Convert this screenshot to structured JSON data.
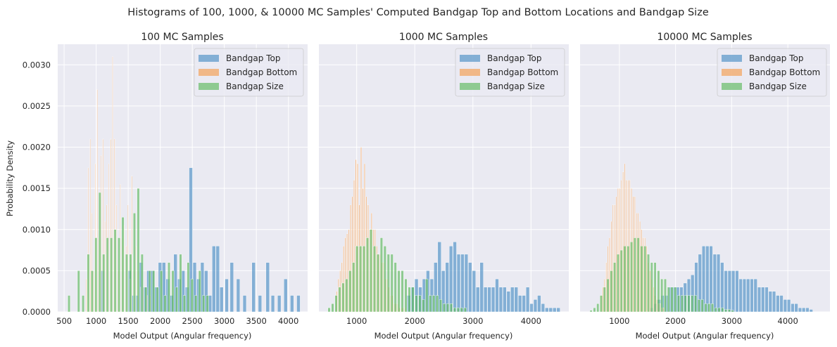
{
  "suptitle": "Histograms of 100, 1000, & 10000 MC Samples' Computed Bandgap Top and Bottom Locations and Bandgap Size",
  "colors": {
    "top": "#4c8fc4",
    "bottom": "#f59d4f",
    "size": "#5cb85c",
    "panel_bg": "#eaeaf2",
    "grid": "#ffffff"
  },
  "chart_data": [
    {
      "type": "bar",
      "title": "100 MC Samples",
      "xlabel": "Model Output (Angular frequency)",
      "ylabel": "Probability Density",
      "xlim": [
        400,
        4300
      ],
      "ylim": [
        0,
        0.00325
      ],
      "xticks": [
        500,
        1000,
        1500,
        2000,
        2500,
        3000,
        3500,
        4000
      ],
      "yticks": [
        0.0,
        0.0005,
        0.001,
        0.0015,
        0.002,
        0.0025,
        0.003
      ],
      "ytick_labels": [
        "0.0000",
        "0.0005",
        "0.0010",
        "0.0015",
        "0.0020",
        "0.0025",
        "0.0030"
      ],
      "legend": [
        "Bandgap Top",
        "Bandgap Bottom",
        "Bandgap Size"
      ],
      "legend_loc": "upper right",
      "series": [
        {
          "name": "Bandgap Top",
          "bin_width": 60,
          "x": [
            1100,
            1520,
            1580,
            1640,
            1700,
            1760,
            1820,
            1880,
            1940,
            2000,
            2060,
            2120,
            2180,
            2240,
            2300,
            2360,
            2420,
            2480,
            2540,
            2600,
            2660,
            2720,
            2780,
            2840,
            2900,
            2960,
            3040,
            3120,
            3220,
            3320,
            3460,
            3560,
            3680,
            3760,
            3860,
            3960,
            4060,
            4160
          ],
          "values": [
            0.0005,
            0.0005,
            0.0002,
            0.0002,
            0.0006,
            0.0003,
            0.0005,
            0.0005,
            0.0003,
            0.0006,
            0.0006,
            0.0004,
            0.0002,
            0.0007,
            0.0004,
            0.0005,
            0.0003,
            0.00175,
            0.0006,
            0.0004,
            0.0006,
            0.0005,
            0.0002,
            0.0008,
            0.0008,
            0.0003,
            0.0004,
            0.0006,
            0.0004,
            0.0002,
            0.0006,
            0.0002,
            0.0006,
            0.0002,
            0.0002,
            0.0004,
            0.0002,
            0.0002
          ]
        },
        {
          "name": "Bandgap Bottom",
          "bin_width": 16,
          "x": [
            850,
            880,
            910,
            935,
            960,
            990,
            1020,
            1050,
            1080,
            1110,
            1140,
            1170,
            1200,
            1230,
            1260,
            1290,
            1320,
            1350,
            1380,
            1410,
            1440,
            1470,
            1500,
            1530,
            1560,
            1590,
            1620,
            1660,
            1700,
            1740,
            1800,
            1850
          ],
          "values": [
            0.0004,
            0.00175,
            0.0021,
            0.0012,
            0.0005,
            0.0018,
            0.0027,
            0.0009,
            0.0019,
            0.0021,
            0.0011,
            0.0013,
            0.0018,
            0.0021,
            0.0031,
            0.0021,
            0.0013,
            0.0005,
            0.00155,
            0.0009,
            0.00105,
            0.0008,
            0.0013,
            0.0004,
            0.00165,
            0.0005,
            0.0008,
            0.0005,
            0.0003,
            0.0003,
            0.0002,
            0.0002
          ]
        },
        {
          "name": "Bandgap Size",
          "bin_width": 44,
          "x": [
            580,
            730,
            800,
            880,
            940,
            1000,
            1060,
            1120,
            1180,
            1240,
            1300,
            1360,
            1420,
            1480,
            1540,
            1600,
            1660,
            1720,
            1780,
            1840,
            1900,
            1960,
            2020,
            2080,
            2140,
            2200,
            2260,
            2320,
            2380,
            2440,
            2500,
            2560,
            2620,
            2680,
            2740
          ],
          "values": [
            0.0002,
            0.0005,
            0.0002,
            0.0007,
            0.0005,
            0.0009,
            0.00145,
            0.0007,
            0.0009,
            0.0009,
            0.001,
            0.0009,
            0.00115,
            0.0007,
            0.0007,
            0.0012,
            0.0015,
            0.0007,
            0.0003,
            0.0005,
            0.0005,
            0.0003,
            0.0005,
            0.0002,
            0.0006,
            0.0005,
            0.0003,
            0.0007,
            0.0002,
            0.0006,
            0.0004,
            0.0002,
            0.0005,
            0.0002,
            0.0002
          ]
        }
      ]
    },
    {
      "type": "bar",
      "title": "1000 MC Samples",
      "xlabel": "Model Output (Angular frequency)",
      "xlim": [
        350,
        4650
      ],
      "ylim": [
        0,
        0.00325
      ],
      "xticks": [
        1000,
        2000,
        3000,
        4000
      ],
      "legend": [
        "Bandgap Top",
        "Bandgap Bottom",
        "Bandgap Size"
      ],
      "legend_loc": "upper right",
      "series": [
        {
          "name": "Bandgap Top",
          "bin_width": 66,
          "x": [
            1900,
            1966,
            2032,
            2098,
            2164,
            2230,
            2296,
            2362,
            2428,
            2494,
            2560,
            2626,
            2692,
            2758,
            2824,
            2890,
            2956,
            3022,
            3088,
            3154,
            3220,
            3286,
            3352,
            3418,
            3484,
            3550,
            3616,
            3682,
            3748,
            3814,
            3880,
            3946,
            4012,
            4078,
            4144,
            4210,
            4276,
            4342,
            4408,
            4474
          ],
          "values": [
            0.0002,
            0.0003,
            0.0004,
            0.0003,
            0.0004,
            0.0005,
            0.0004,
            0.0006,
            0.00085,
            0.0005,
            0.0006,
            0.0008,
            0.00085,
            0.0007,
            0.0007,
            0.0007,
            0.0006,
            0.0005,
            0.0003,
            0.0006,
            0.0003,
            0.0003,
            0.0003,
            0.0004,
            0.0003,
            0.0003,
            0.00025,
            0.0003,
            0.0003,
            0.0002,
            0.0002,
            0.0003,
            0.0001,
            0.00015,
            0.0002,
            0.0001,
            5e-05,
            5e-05,
            5e-05,
            5e-05
          ]
        },
        {
          "name": "Bandgap Bottom",
          "bin_width": 24,
          "x": [
            660,
            690,
            720,
            750,
            780,
            810,
            840,
            870,
            900,
            930,
            960,
            990,
            1020,
            1050,
            1080,
            1110,
            1140,
            1170,
            1200,
            1230,
            1260,
            1290,
            1320,
            1350,
            1380,
            1410,
            1440,
            1470,
            1500,
            1530,
            1560,
            1590,
            1620,
            1650,
            1680,
            1710,
            1740,
            1770,
            1800,
            1830
          ],
          "values": [
            0.00025,
            0.0004,
            0.0005,
            0.0006,
            0.0008,
            0.0009,
            0.00095,
            0.001,
            0.0013,
            0.0014,
            0.0016,
            0.00185,
            0.0018,
            0.0013,
            0.002,
            0.0015,
            0.0018,
            0.0014,
            0.0013,
            0.001,
            0.0012,
            0.001,
            0.001,
            0.0008,
            0.0007,
            0.0007,
            0.0006,
            0.0006,
            0.0004,
            0.0004,
            0.0003,
            0.0002,
            0.0002,
            0.0001,
            0.0001,
            0.0001,
            5e-05,
            5e-05,
            5e-05,
            5e-05
          ]
        },
        {
          "name": "Bandgap Size",
          "bin_width": 50,
          "x": [
            530,
            590,
            650,
            710,
            770,
            830,
            890,
            950,
            1010,
            1070,
            1130,
            1190,
            1250,
            1310,
            1370,
            1430,
            1490,
            1550,
            1610,
            1670,
            1730,
            1790,
            1850,
            1910,
            1970,
            2030,
            2090,
            2150,
            2210,
            2270,
            2330,
            2390,
            2450,
            2510,
            2570,
            2630,
            2690,
            2750,
            2810,
            2870
          ],
          "values": [
            5e-05,
            0.0001,
            0.0002,
            0.0003,
            0.00035,
            0.0004,
            0.0005,
            0.0006,
            0.0008,
            0.0008,
            0.0008,
            0.0009,
            0.001,
            0.0008,
            0.0007,
            0.0009,
            0.0008,
            0.0007,
            0.0007,
            0.0006,
            0.0005,
            0.0005,
            0.0004,
            0.0003,
            0.0003,
            0.0002,
            0.0002,
            0.00015,
            0.0004,
            0.0002,
            0.0002,
            0.0002,
            0.00015,
            0.0001,
            0.0001,
            0.0001,
            5e-05,
            5e-05,
            5e-05,
            5e-05
          ]
        }
      ]
    },
    {
      "type": "bar",
      "title": "10000 MC Samples",
      "xlabel": "Model Output (Angular frequency)",
      "xlim": [
        300,
        4750
      ],
      "ylim": [
        0,
        0.00325
      ],
      "xticks": [
        1000,
        2000,
        3000,
        4000
      ],
      "legend": [
        "Bandgap Top",
        "Bandgap Bottom",
        "Bandgap Size"
      ],
      "legend_loc": "upper right",
      "series": [
        {
          "name": "Bandgap Top",
          "bin_width": 66,
          "x": [
            1580,
            1646,
            1712,
            1778,
            1844,
            1910,
            1976,
            2042,
            2108,
            2174,
            2240,
            2306,
            2372,
            2438,
            2504,
            2570,
            2636,
            2702,
            2768,
            2834,
            2900,
            2966,
            3032,
            3098,
            3164,
            3230,
            3296,
            3362,
            3428,
            3494,
            3560,
            3626,
            3692,
            3758,
            3824,
            3890,
            3956,
            4022,
            4088,
            4154,
            4220,
            4286,
            4352,
            4418
          ],
          "values": [
            5e-05,
            0.0001,
            0.00015,
            0.0002,
            0.0002,
            0.0003,
            0.0003,
            0.0003,
            0.0003,
            0.00035,
            0.0004,
            0.00045,
            0.0006,
            0.0007,
            0.0008,
            0.0008,
            0.0008,
            0.0007,
            0.0007,
            0.0006,
            0.0005,
            0.0005,
            0.0005,
            0.0005,
            0.0004,
            0.0004,
            0.0004,
            0.0004,
            0.0004,
            0.0003,
            0.0003,
            0.0003,
            0.00025,
            0.00025,
            0.0002,
            0.0002,
            0.00015,
            0.00015,
            0.0001,
            0.0001,
            5e-05,
            5e-05,
            5e-05,
            3e-05
          ]
        },
        {
          "name": "Bandgap Bottom",
          "bin_width": 22,
          "x": [
            680,
            710,
            740,
            770,
            800,
            830,
            860,
            890,
            920,
            950,
            980,
            1010,
            1040,
            1070,
            1100,
            1130,
            1160,
            1190,
            1220,
            1250,
            1280,
            1310,
            1340,
            1370,
            1400,
            1430,
            1460,
            1490,
            1520,
            1550,
            1580,
            1610,
            1640,
            1670,
            1700,
            1730,
            1760,
            1790
          ],
          "values": [
            0.0002,
            0.0003,
            0.0004,
            0.0006,
            0.0008,
            0.0009,
            0.0011,
            0.0013,
            0.0013,
            0.0014,
            0.0015,
            0.0015,
            0.0016,
            0.0017,
            0.0018,
            0.0016,
            0.0016,
            0.0016,
            0.0015,
            0.0014,
            0.0014,
            0.0012,
            0.0012,
            0.0011,
            0.001,
            0.0009,
            0.0009,
            0.0008,
            0.0006,
            0.0005,
            0.0004,
            0.0003,
            0.0002,
            0.00015,
            0.0001,
            0.0001,
            5e-05,
            5e-05
          ]
        },
        {
          "name": "Bandgap Size",
          "bin_width": 50,
          "x": [
            500,
            560,
            620,
            680,
            740,
            800,
            860,
            920,
            980,
            1040,
            1100,
            1160,
            1220,
            1280,
            1340,
            1400,
            1460,
            1520,
            1580,
            1640,
            1700,
            1760,
            1820,
            1880,
            1940,
            2000,
            2060,
            2120,
            2180,
            2240,
            2300,
            2360,
            2420,
            2480,
            2540,
            2600,
            2660,
            2720,
            2780,
            2840,
            2900,
            2960,
            3020
          ],
          "values": [
            2e-05,
            5e-05,
            0.0001,
            0.0002,
            0.0003,
            0.0004,
            0.0005,
            0.0006,
            0.0007,
            0.00075,
            0.0008,
            0.0008,
            0.00085,
            0.0009,
            0.0009,
            0.0008,
            0.0008,
            0.0007,
            0.0006,
            0.0006,
            0.0005,
            0.0004,
            0.0004,
            0.0003,
            0.0003,
            0.0003,
            0.0002,
            0.0002,
            0.0002,
            0.0002,
            0.0002,
            0.0002,
            0.00015,
            0.00015,
            0.0001,
            0.0001,
            0.0001,
            5e-05,
            5e-05,
            5e-05,
            3e-05,
            3e-05,
            2e-05
          ]
        }
      ]
    }
  ]
}
